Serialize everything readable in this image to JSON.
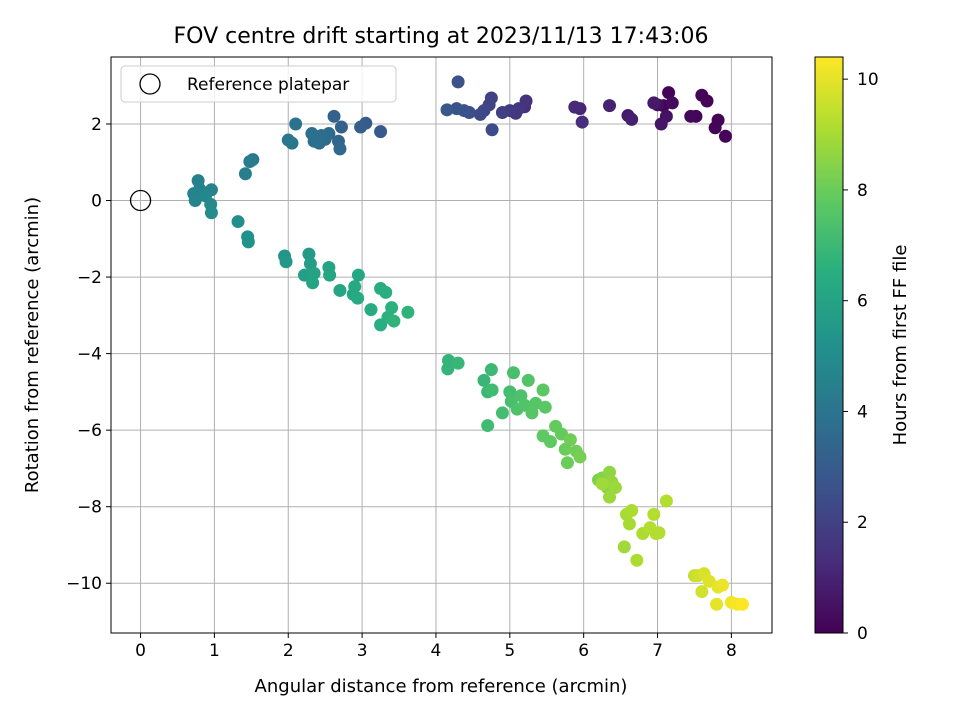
{
  "chart_data": {
    "type": "scatter",
    "title": "FOV centre drift starting at 2023/11/13 17:43:06",
    "xlabel": "Angular distance from reference (arcmin)",
    "ylabel": "Rotation from reference (arcmin)",
    "xlim": [
      -0.4,
      8.55
    ],
    "ylim": [
      -11.3,
      3.75
    ],
    "xticks": [
      0,
      1,
      2,
      3,
      4,
      5,
      6,
      7,
      8
    ],
    "yticks": [
      -10,
      -8,
      -6,
      -4,
      -2,
      0,
      2
    ],
    "grid": true,
    "legend": {
      "placement": "top-left",
      "entries": [
        "Reference platepar"
      ]
    },
    "reference_point": {
      "x": 0,
      "y": 0,
      "label": "Reference platepar"
    },
    "colorbar": {
      "label": "Hours from first FF file",
      "colormap": "viridis",
      "range": [
        0,
        10.4
      ],
      "ticks": [
        0,
        2,
        4,
        6,
        8,
        10
      ]
    },
    "points": [
      {
        "x": 7.08,
        "y": 2.48,
        "c": 0.1
      },
      {
        "x": 7.15,
        "y": 2.82,
        "c": 0.1
      },
      {
        "x": 7.52,
        "y": 2.2,
        "c": 0.1
      },
      {
        "x": 7.6,
        "y": 2.75,
        "c": 0.1
      },
      {
        "x": 7.67,
        "y": 2.6,
        "c": 0.1
      },
      {
        "x": 7.78,
        "y": 1.9,
        "c": 0.1
      },
      {
        "x": 7.82,
        "y": 2.1,
        "c": 0.1
      },
      {
        "x": 7.92,
        "y": 1.68,
        "c": 0.1
      },
      {
        "x": 7.45,
        "y": 2.2,
        "c": 0.2
      },
      {
        "x": 7.2,
        "y": 2.55,
        "c": 0.3
      },
      {
        "x": 7.0,
        "y": 2.5,
        "c": 0.4
      },
      {
        "x": 7.12,
        "y": 2.2,
        "c": 0.5
      },
      {
        "x": 7.05,
        "y": 2.0,
        "c": 0.6
      },
      {
        "x": 6.95,
        "y": 2.55,
        "c": 0.7
      },
      {
        "x": 6.6,
        "y": 2.22,
        "c": 0.8
      },
      {
        "x": 6.65,
        "y": 2.12,
        "c": 0.9
      },
      {
        "x": 6.35,
        "y": 2.48,
        "c": 1.0
      },
      {
        "x": 5.95,
        "y": 2.4,
        "c": 1.1
      },
      {
        "x": 5.88,
        "y": 2.44,
        "c": 1.2
      },
      {
        "x": 5.98,
        "y": 2.05,
        "c": 1.3
      },
      {
        "x": 5.2,
        "y": 2.45,
        "c": 1.4
      },
      {
        "x": 5.22,
        "y": 2.6,
        "c": 1.5
      },
      {
        "x": 5.08,
        "y": 2.28,
        "c": 1.6
      },
      {
        "x": 5.12,
        "y": 2.4,
        "c": 1.7
      },
      {
        "x": 5.0,
        "y": 2.35,
        "c": 1.8
      },
      {
        "x": 4.9,
        "y": 2.3,
        "c": 1.9
      },
      {
        "x": 4.75,
        "y": 2.68,
        "c": 2.0
      },
      {
        "x": 4.72,
        "y": 2.5,
        "c": 2.1
      },
      {
        "x": 4.65,
        "y": 2.35,
        "c": 2.2
      },
      {
        "x": 4.6,
        "y": 2.25,
        "c": 2.3
      },
      {
        "x": 4.76,
        "y": 1.85,
        "c": 2.4
      },
      {
        "x": 4.45,
        "y": 2.3,
        "c": 2.5
      },
      {
        "x": 4.38,
        "y": 2.35,
        "c": 2.6
      },
      {
        "x": 4.3,
        "y": 3.1,
        "c": 2.6
      },
      {
        "x": 4.28,
        "y": 2.4,
        "c": 2.7
      },
      {
        "x": 4.15,
        "y": 2.37,
        "c": 2.8
      },
      {
        "x": 3.25,
        "y": 1.8,
        "c": 2.9
      },
      {
        "x": 3.05,
        "y": 2.02,
        "c": 3.0
      },
      {
        "x": 2.98,
        "y": 1.92,
        "c": 3.1
      },
      {
        "x": 2.72,
        "y": 1.92,
        "c": 3.2
      },
      {
        "x": 2.62,
        "y": 2.2,
        "c": 3.3
      },
      {
        "x": 2.68,
        "y": 1.55,
        "c": 3.4
      },
      {
        "x": 2.7,
        "y": 1.35,
        "c": 3.5
      },
      {
        "x": 2.55,
        "y": 1.75,
        "c": 3.6
      },
      {
        "x": 2.5,
        "y": 1.6,
        "c": 3.6
      },
      {
        "x": 2.45,
        "y": 1.7,
        "c": 3.7
      },
      {
        "x": 2.42,
        "y": 1.5,
        "c": 3.7
      },
      {
        "x": 2.35,
        "y": 1.55,
        "c": 3.8
      },
      {
        "x": 2.32,
        "y": 1.75,
        "c": 3.8
      },
      {
        "x": 2.1,
        "y": 2.0,
        "c": 3.9
      },
      {
        "x": 2.05,
        "y": 1.5,
        "c": 4.0
      },
      {
        "x": 2.0,
        "y": 1.58,
        "c": 4.1
      },
      {
        "x": 1.52,
        "y": 1.07,
        "c": 4.2
      },
      {
        "x": 1.48,
        "y": 1.02,
        "c": 4.3
      },
      {
        "x": 1.42,
        "y": 0.7,
        "c": 4.4
      },
      {
        "x": 0.78,
        "y": 0.52,
        "c": 4.5
      },
      {
        "x": 0.8,
        "y": 0.3,
        "c": 4.5
      },
      {
        "x": 0.72,
        "y": 0.18,
        "c": 4.6
      },
      {
        "x": 0.96,
        "y": 0.28,
        "c": 4.6
      },
      {
        "x": 0.74,
        "y": 0.0,
        "c": 4.7
      },
      {
        "x": 0.88,
        "y": 0.12,
        "c": 4.8
      },
      {
        "x": 0.95,
        "y": -0.1,
        "c": 4.9
      },
      {
        "x": 0.96,
        "y": -0.32,
        "c": 5.0
      },
      {
        "x": 1.32,
        "y": -0.55,
        "c": 5.1
      },
      {
        "x": 1.45,
        "y": -0.95,
        "c": 5.2
      },
      {
        "x": 1.46,
        "y": -1.08,
        "c": 5.3
      },
      {
        "x": 1.95,
        "y": -1.45,
        "c": 5.4
      },
      {
        "x": 1.97,
        "y": -1.6,
        "c": 5.5
      },
      {
        "x": 2.28,
        "y": -1.4,
        "c": 5.6
      },
      {
        "x": 2.3,
        "y": -1.65,
        "c": 5.7
      },
      {
        "x": 2.22,
        "y": -1.95,
        "c": 5.8
      },
      {
        "x": 2.35,
        "y": -1.9,
        "c": 5.9
      },
      {
        "x": 2.33,
        "y": -2.15,
        "c": 6.0
      },
      {
        "x": 2.55,
        "y": -1.75,
        "c": 6.0
      },
      {
        "x": 2.56,
        "y": -1.95,
        "c": 6.1
      },
      {
        "x": 2.7,
        "y": -2.35,
        "c": 6.1
      },
      {
        "x": 2.88,
        "y": -2.45,
        "c": 6.2
      },
      {
        "x": 2.95,
        "y": -1.95,
        "c": 6.2
      },
      {
        "x": 2.9,
        "y": -2.25,
        "c": 6.3
      },
      {
        "x": 2.94,
        "y": -2.55,
        "c": 6.3
      },
      {
        "x": 3.12,
        "y": -2.85,
        "c": 6.4
      },
      {
        "x": 3.25,
        "y": -2.3,
        "c": 6.4
      },
      {
        "x": 3.32,
        "y": -2.4,
        "c": 6.5
      },
      {
        "x": 3.25,
        "y": -3.25,
        "c": 6.5
      },
      {
        "x": 3.35,
        "y": -3.05,
        "c": 6.6
      },
      {
        "x": 3.4,
        "y": -2.8,
        "c": 6.6
      },
      {
        "x": 3.43,
        "y": -3.15,
        "c": 6.7
      },
      {
        "x": 3.62,
        "y": -2.92,
        "c": 6.7
      },
      {
        "x": 4.17,
        "y": -4.18,
        "c": 6.8
      },
      {
        "x": 4.16,
        "y": -4.4,
        "c": 6.8
      },
      {
        "x": 4.3,
        "y": -4.25,
        "c": 6.9
      },
      {
        "x": 4.65,
        "y": -4.7,
        "c": 6.9
      },
      {
        "x": 4.75,
        "y": -4.42,
        "c": 7.0
      },
      {
        "x": 4.7,
        "y": -5.0,
        "c": 7.0
      },
      {
        "x": 4.76,
        "y": -4.95,
        "c": 7.1
      },
      {
        "x": 4.7,
        "y": -5.88,
        "c": 7.1
      },
      {
        "x": 4.9,
        "y": -5.55,
        "c": 7.2
      },
      {
        "x": 5.0,
        "y": -5.0,
        "c": 7.2
      },
      {
        "x": 5.05,
        "y": -4.5,
        "c": 7.3
      },
      {
        "x": 5.02,
        "y": -5.25,
        "c": 7.3
      },
      {
        "x": 5.1,
        "y": -5.45,
        "c": 7.4
      },
      {
        "x": 5.15,
        "y": -5.1,
        "c": 7.4
      },
      {
        "x": 5.2,
        "y": -5.35,
        "c": 7.5
      },
      {
        "x": 5.25,
        "y": -4.7,
        "c": 7.5
      },
      {
        "x": 5.3,
        "y": -5.55,
        "c": 7.6
      },
      {
        "x": 5.35,
        "y": -5.3,
        "c": 7.6
      },
      {
        "x": 5.45,
        "y": -4.95,
        "c": 7.7
      },
      {
        "x": 5.48,
        "y": -5.4,
        "c": 7.7
      },
      {
        "x": 5.45,
        "y": -6.15,
        "c": 7.8
      },
      {
        "x": 5.55,
        "y": -6.3,
        "c": 7.8
      },
      {
        "x": 5.62,
        "y": -5.9,
        "c": 7.9
      },
      {
        "x": 5.7,
        "y": -6.1,
        "c": 7.9
      },
      {
        "x": 5.75,
        "y": -6.5,
        "c": 8.0
      },
      {
        "x": 5.78,
        "y": -6.85,
        "c": 8.0
      },
      {
        "x": 5.82,
        "y": -6.25,
        "c": 8.1
      },
      {
        "x": 5.9,
        "y": -6.55,
        "c": 8.1
      },
      {
        "x": 5.95,
        "y": -6.7,
        "c": 8.2
      },
      {
        "x": 6.2,
        "y": -7.3,
        "c": 8.3
      },
      {
        "x": 6.25,
        "y": -7.25,
        "c": 8.4
      },
      {
        "x": 6.32,
        "y": -7.5,
        "c": 8.5
      },
      {
        "x": 6.35,
        "y": -7.1,
        "c": 8.6
      },
      {
        "x": 6.38,
        "y": -7.35,
        "c": 8.7
      },
      {
        "x": 6.35,
        "y": -7.75,
        "c": 8.8
      },
      {
        "x": 6.43,
        "y": -7.5,
        "c": 8.8
      },
      {
        "x": 6.25,
        "y": -7.4,
        "c": 8.9
      },
      {
        "x": 6.55,
        "y": -9.05,
        "c": 8.9
      },
      {
        "x": 6.58,
        "y": -8.2,
        "c": 9.0
      },
      {
        "x": 6.62,
        "y": -8.45,
        "c": 9.0
      },
      {
        "x": 6.65,
        "y": -8.1,
        "c": 9.1
      },
      {
        "x": 6.72,
        "y": -9.4,
        "c": 9.1
      },
      {
        "x": 6.8,
        "y": -8.7,
        "c": 9.1
      },
      {
        "x": 6.9,
        "y": -8.55,
        "c": 9.2
      },
      {
        "x": 6.95,
        "y": -8.2,
        "c": 9.2
      },
      {
        "x": 6.98,
        "y": -8.7,
        "c": 9.2
      },
      {
        "x": 7.02,
        "y": -8.68,
        "c": 9.2
      },
      {
        "x": 7.12,
        "y": -7.85,
        "c": 9.2
      },
      {
        "x": 7.5,
        "y": -9.8,
        "c": 9.5
      },
      {
        "x": 7.55,
        "y": -9.8,
        "c": 9.6
      },
      {
        "x": 7.6,
        "y": -10.22,
        "c": 9.7
      },
      {
        "x": 7.63,
        "y": -9.75,
        "c": 9.8
      },
      {
        "x": 7.7,
        "y": -9.95,
        "c": 9.9
      },
      {
        "x": 7.8,
        "y": -10.55,
        "c": 10.0
      },
      {
        "x": 7.82,
        "y": -10.1,
        "c": 10.0
      },
      {
        "x": 7.88,
        "y": -10.05,
        "c": 10.1
      },
      {
        "x": 8.0,
        "y": -10.5,
        "c": 10.2
      },
      {
        "x": 8.08,
        "y": -10.55,
        "c": 10.3
      },
      {
        "x": 8.15,
        "y": -10.55,
        "c": 10.4
      }
    ]
  }
}
